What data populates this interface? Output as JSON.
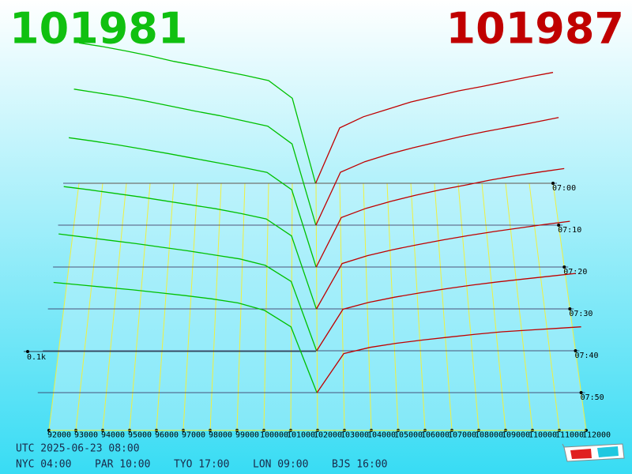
{
  "chart_data": {
    "type": "depth3d",
    "best_bid": "101981",
    "best_ask": "101987",
    "bid_color": "#00c000",
    "ask_color": "#c00000",
    "bid_prices": [
      92000,
      93000,
      94000,
      95000,
      96000,
      97000,
      98000,
      99000,
      100000,
      101000,
      101981
    ],
    "ask_prices": [
      101987,
      103000,
      104000,
      105000,
      106000,
      107000,
      108000,
      109000,
      110000,
      111000,
      112000
    ],
    "xlim": [
      92000,
      112000
    ],
    "xticks": [
      92000,
      93000,
      94000,
      95000,
      96000,
      97000,
      98000,
      99000,
      100000,
      101000,
      102000,
      103000,
      104000,
      105000,
      106000,
      107000,
      108000,
      109000,
      110000,
      111000,
      112000
    ],
    "zlim": [
      0,
      400
    ],
    "zticks": [
      {
        "value": 100,
        "label": "0.1k"
      }
    ],
    "snapshots": [
      {
        "time": "07:00",
        "bids": [
          380,
          370,
          358,
          345,
          330,
          318,
          305,
          292,
          278,
          230,
          0
        ],
        "asks": [
          0,
          150,
          180,
          200,
          220,
          235,
          250,
          262,
          275,
          288,
          300
        ]
      },
      {
        "time": "07:10",
        "bids": [
          360,
          350,
          340,
          328,
          315,
          302,
          290,
          276,
          262,
          215,
          0
        ],
        "asks": [
          0,
          140,
          168,
          188,
          205,
          220,
          235,
          248,
          260,
          272,
          285
        ]
      },
      {
        "time": "07:20",
        "bids": [
          335,
          326,
          316,
          305,
          294,
          282,
          270,
          258,
          245,
          200,
          0
        ],
        "asks": [
          0,
          128,
          152,
          170,
          186,
          200,
          212,
          225,
          236,
          246,
          255
        ]
      },
      {
        "time": "07:30",
        "bids": [
          310,
          302,
          293,
          284,
          274,
          264,
          254,
          242,
          228,
          185,
          0
        ],
        "asks": [
          0,
          115,
          135,
          150,
          163,
          175,
          186,
          196,
          205,
          214,
          222
        ]
      },
      {
        "time": "07:40",
        "bids": [
          290,
          282,
          274,
          266,
          257,
          248,
          238,
          228,
          212,
          172,
          0
        ],
        "asks": [
          0,
          103,
          120,
          133,
          144,
          154,
          163,
          171,
          178,
          185,
          192
        ]
      },
      {
        "time": "07:50",
        "bids": [
          268,
          262,
          256,
          250,
          243,
          236,
          228,
          218,
          200,
          160,
          0
        ],
        "asks": [
          0,
          95,
          110,
          120,
          128,
          135,
          142,
          148,
          152,
          156,
          160
        ]
      }
    ]
  },
  "footer": {
    "utc": "UTC 2025-06-23 08:00",
    "zones": [
      "NYC 04:00",
      "PAR 10:00",
      "TYO 17:00",
      "LON 09:00",
      "BJS 16:00"
    ]
  }
}
